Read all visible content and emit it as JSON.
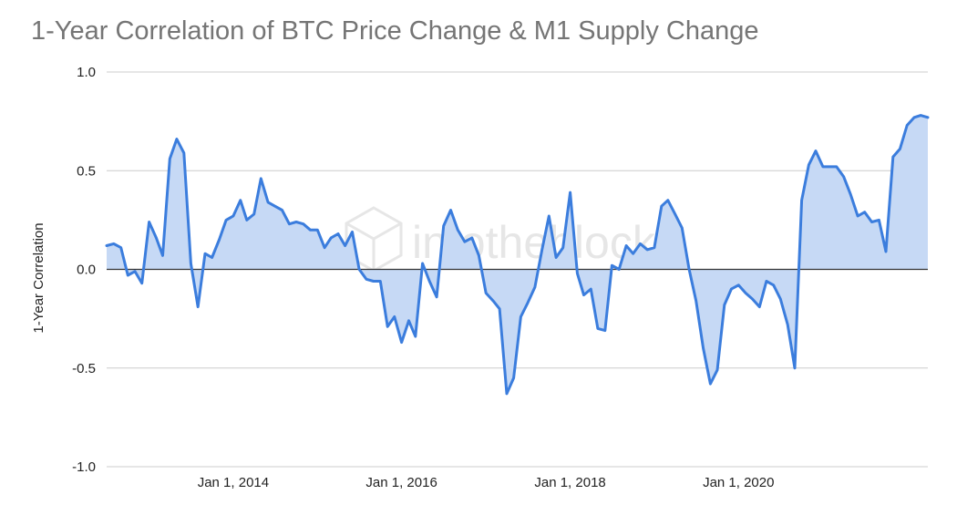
{
  "title": "1-Year Correlation of BTC Price Change & M1 Supply Change",
  "watermark": "intotheblock",
  "colors": {
    "line": "#3b7ddd",
    "fill": "#c6d9f5",
    "grid": "#cccccc",
    "zero": "#333333",
    "title": "#757575"
  },
  "chart_data": {
    "type": "area",
    "title": "1-Year Correlation of BTC Price Change & M1 Supply Change",
    "xlabel": "",
    "ylabel": "1-Year Correlation",
    "ylim": [
      -1.0,
      1.0
    ],
    "yticks": [
      {
        "value": 1.0,
        "label": "1.0"
      },
      {
        "value": 0.5,
        "label": "0.5"
      },
      {
        "value": 0.0,
        "label": "0.0"
      },
      {
        "value": -0.5,
        "label": "-0.5"
      },
      {
        "value": -1.0,
        "label": "-1.0"
      }
    ],
    "xlim": [
      "2012-07-01",
      "2021-12-01"
    ],
    "xticks": [
      {
        "date": "2014-01-01",
        "label": "Jan 1, 2014"
      },
      {
        "date": "2016-01-01",
        "label": "Jan 1, 2016"
      },
      {
        "date": "2018-01-01",
        "label": "Jan 1, 2018"
      },
      {
        "date": "2020-01-01",
        "label": "Jan 1, 2020"
      }
    ],
    "grid": true,
    "legend": "none",
    "series": [
      {
        "points": [
          [
            "2012-07-01",
            0.12
          ],
          [
            "2012-08-01",
            0.13
          ],
          [
            "2012-09-01",
            0.11
          ],
          [
            "2012-10-01",
            -0.03
          ],
          [
            "2012-11-01",
            -0.01
          ],
          [
            "2012-12-01",
            -0.07
          ],
          [
            "2013-01-01",
            0.24
          ],
          [
            "2013-02-01",
            0.16
          ],
          [
            "2013-03-01",
            0.07
          ],
          [
            "2013-04-01",
            0.56
          ],
          [
            "2013-05-01",
            0.66
          ],
          [
            "2013-06-01",
            0.59
          ],
          [
            "2013-07-01",
            0.03
          ],
          [
            "2013-08-01",
            -0.19
          ],
          [
            "2013-09-01",
            0.08
          ],
          [
            "2013-10-01",
            0.06
          ],
          [
            "2013-11-01",
            0.15
          ],
          [
            "2013-12-01",
            0.25
          ],
          [
            "2014-01-01",
            0.27
          ],
          [
            "2014-02-01",
            0.35
          ],
          [
            "2014-03-01",
            0.25
          ],
          [
            "2014-04-01",
            0.28
          ],
          [
            "2014-05-01",
            0.46
          ],
          [
            "2014-06-01",
            0.34
          ],
          [
            "2014-07-01",
            0.32
          ],
          [
            "2014-08-01",
            0.3
          ],
          [
            "2014-09-01",
            0.23
          ],
          [
            "2014-10-01",
            0.24
          ],
          [
            "2014-11-01",
            0.23
          ],
          [
            "2014-12-01",
            0.2
          ],
          [
            "2015-01-01",
            0.2
          ],
          [
            "2015-02-01",
            0.11
          ],
          [
            "2015-03-01",
            0.16
          ],
          [
            "2015-04-01",
            0.18
          ],
          [
            "2015-05-01",
            0.12
          ],
          [
            "2015-06-01",
            0.19
          ],
          [
            "2015-07-01",
            0.0
          ],
          [
            "2015-08-01",
            -0.05
          ],
          [
            "2015-09-01",
            -0.06
          ],
          [
            "2015-10-01",
            -0.06
          ],
          [
            "2015-11-01",
            -0.29
          ],
          [
            "2015-12-01",
            -0.24
          ],
          [
            "2016-01-01",
            -0.37
          ],
          [
            "2016-02-01",
            -0.26
          ],
          [
            "2016-03-01",
            -0.34
          ],
          [
            "2016-04-01",
            0.03
          ],
          [
            "2016-05-01",
            -0.06
          ],
          [
            "2016-06-01",
            -0.14
          ],
          [
            "2016-07-01",
            0.22
          ],
          [
            "2016-08-01",
            0.3
          ],
          [
            "2016-09-01",
            0.2
          ],
          [
            "2016-10-01",
            0.14
          ],
          [
            "2016-11-01",
            0.16
          ],
          [
            "2016-12-01",
            0.07
          ],
          [
            "2017-01-01",
            -0.12
          ],
          [
            "2017-02-01",
            -0.16
          ],
          [
            "2017-03-01",
            -0.2
          ],
          [
            "2017-04-01",
            -0.63
          ],
          [
            "2017-05-01",
            -0.55
          ],
          [
            "2017-06-01",
            -0.24
          ],
          [
            "2017-07-01",
            -0.17
          ],
          [
            "2017-08-01",
            -0.09
          ],
          [
            "2017-09-01",
            0.1
          ],
          [
            "2017-10-01",
            0.27
          ],
          [
            "2017-11-01",
            0.06
          ],
          [
            "2017-12-01",
            0.11
          ],
          [
            "2018-01-01",
            0.39
          ],
          [
            "2018-02-01",
            -0.02
          ],
          [
            "2018-03-01",
            -0.13
          ],
          [
            "2018-04-01",
            -0.1
          ],
          [
            "2018-05-01",
            -0.3
          ],
          [
            "2018-06-01",
            -0.31
          ],
          [
            "2018-07-01",
            0.02
          ],
          [
            "2018-08-01",
            0.0
          ],
          [
            "2018-09-01",
            0.12
          ],
          [
            "2018-10-01",
            0.08
          ],
          [
            "2018-11-01",
            0.13
          ],
          [
            "2018-12-01",
            0.1
          ],
          [
            "2019-01-01",
            0.11
          ],
          [
            "2019-02-01",
            0.32
          ],
          [
            "2019-03-01",
            0.35
          ],
          [
            "2019-04-01",
            0.28
          ],
          [
            "2019-05-01",
            0.21
          ],
          [
            "2019-06-01",
            0.0
          ],
          [
            "2019-07-01",
            -0.16
          ],
          [
            "2019-08-01",
            -0.4
          ],
          [
            "2019-09-01",
            -0.58
          ],
          [
            "2019-10-01",
            -0.51
          ],
          [
            "2019-11-01",
            -0.18
          ],
          [
            "2019-12-01",
            -0.1
          ],
          [
            "2020-01-01",
            -0.08
          ],
          [
            "2020-02-01",
            -0.12
          ],
          [
            "2020-03-01",
            -0.15
          ],
          [
            "2020-04-01",
            -0.19
          ],
          [
            "2020-05-01",
            -0.06
          ],
          [
            "2020-06-01",
            -0.08
          ],
          [
            "2020-07-01",
            -0.15
          ],
          [
            "2020-08-01",
            -0.28
          ],
          [
            "2020-09-01",
            -0.5
          ],
          [
            "2020-10-01",
            0.35
          ],
          [
            "2020-11-01",
            0.53
          ],
          [
            "2020-12-01",
            0.6
          ],
          [
            "2021-01-01",
            0.52
          ],
          [
            "2021-02-01",
            0.52
          ],
          [
            "2021-03-01",
            0.52
          ],
          [
            "2021-04-01",
            0.47
          ],
          [
            "2021-05-01",
            0.38
          ],
          [
            "2021-06-01",
            0.27
          ],
          [
            "2021-07-01",
            0.29
          ],
          [
            "2021-08-01",
            0.24
          ],
          [
            "2021-09-01",
            0.25
          ],
          [
            "2021-10-01",
            0.09
          ],
          [
            "2021-11-01",
            0.57
          ],
          [
            "2021-12-01",
            0.61
          ],
          [
            "2022-01-01",
            0.73
          ],
          [
            "2022-02-01",
            0.77
          ],
          [
            "2022-03-01",
            0.78
          ],
          [
            "2022-04-01",
            0.77
          ]
        ]
      }
    ]
  }
}
